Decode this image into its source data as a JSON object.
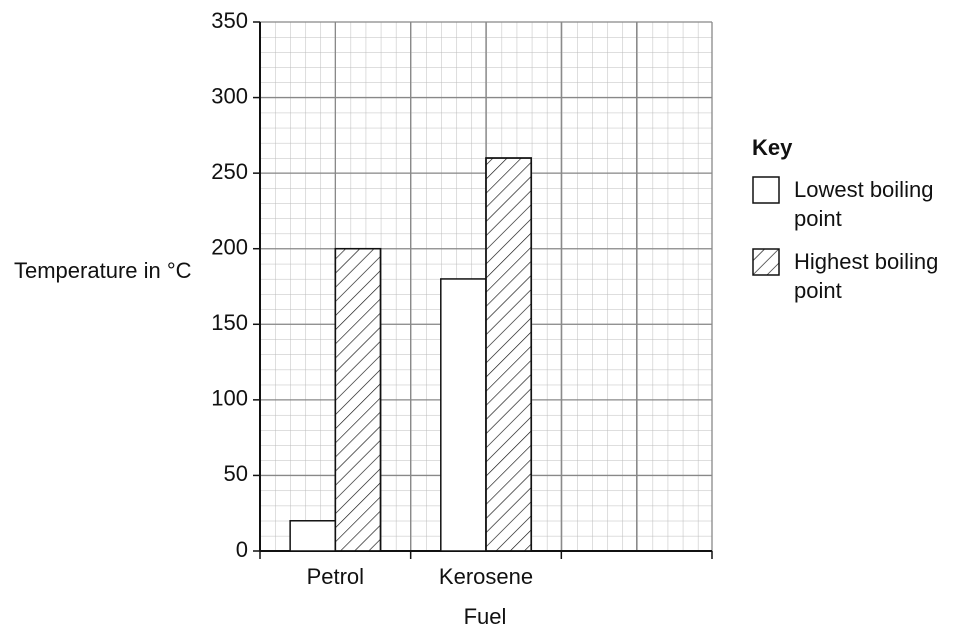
{
  "chart_data": {
    "type": "bar",
    "x_label": "Fuel",
    "y_label": "Temperature in °C",
    "legend_title": "Key",
    "legend": "right",
    "categories": [
      "Petrol",
      "Kerosene",
      null
    ],
    "series": [
      {
        "name": "Lowest boiling point",
        "color": "#ffffff",
        "hatch": false,
        "values": [
          20,
          180,
          null
        ]
      },
      {
        "name": "Highest boiling point",
        "color": "#ffffff",
        "hatch": true,
        "values": [
          200,
          260,
          null
        ]
      }
    ],
    "ylim": [
      0,
      350
    ],
    "yticks": [
      0,
      50,
      100,
      150,
      200,
      250,
      300,
      350
    ],
    "grid": true
  }
}
